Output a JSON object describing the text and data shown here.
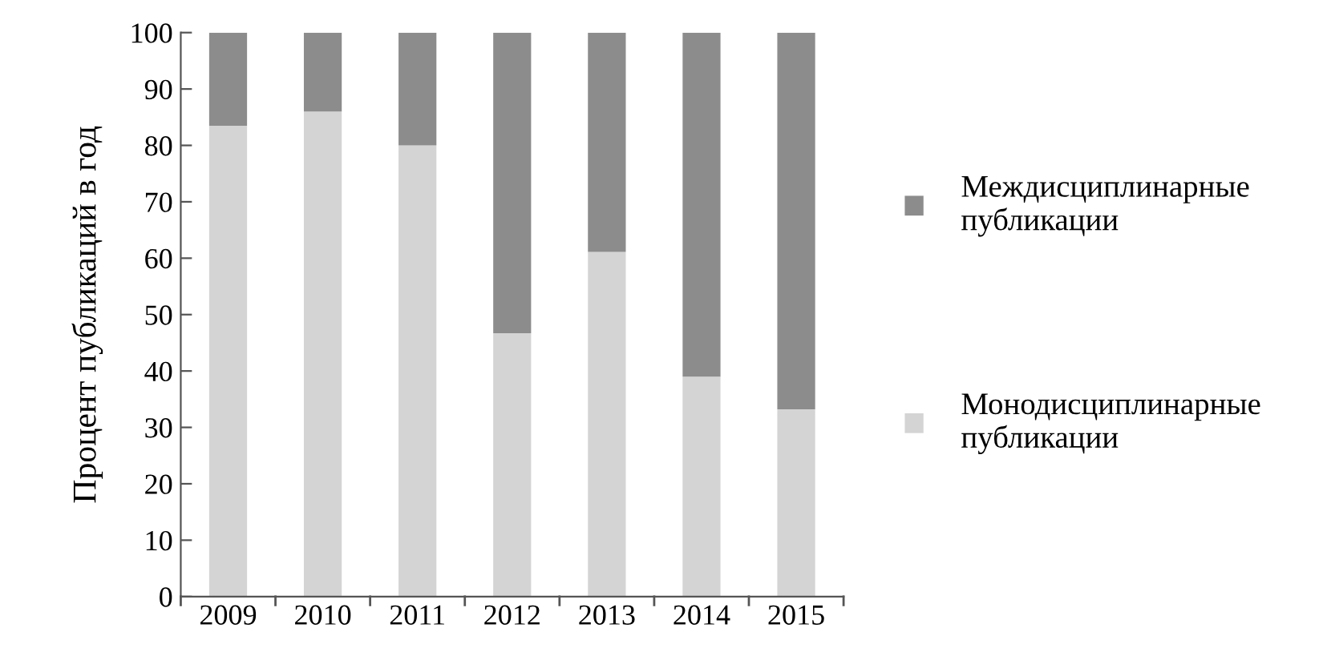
{
  "chart_data": {
    "type": "bar",
    "stacked": true,
    "ylabel": "Процент публикаций в год",
    "categories": [
      "2009",
      "2010",
      "2011",
      "2012",
      "2013",
      "2014",
      "2015"
    ],
    "series": [
      {
        "name": "Монодисциплинарные публикации",
        "color": "#d4d4d4",
        "values": [
          83.5,
          86,
          80,
          46.7,
          61.1,
          39,
          33.2
        ]
      },
      {
        "name": "Междисциплинарные публикации",
        "color": "#8c8c8c",
        "values": [
          16.5,
          14,
          20,
          53.3,
          38.9,
          61,
          66.8
        ]
      }
    ],
    "ylim": [
      0,
      100
    ],
    "yticks": [
      0,
      10,
      20,
      30,
      40,
      50,
      60,
      70,
      80,
      90,
      100
    ],
    "grid": false,
    "legend": "right"
  }
}
